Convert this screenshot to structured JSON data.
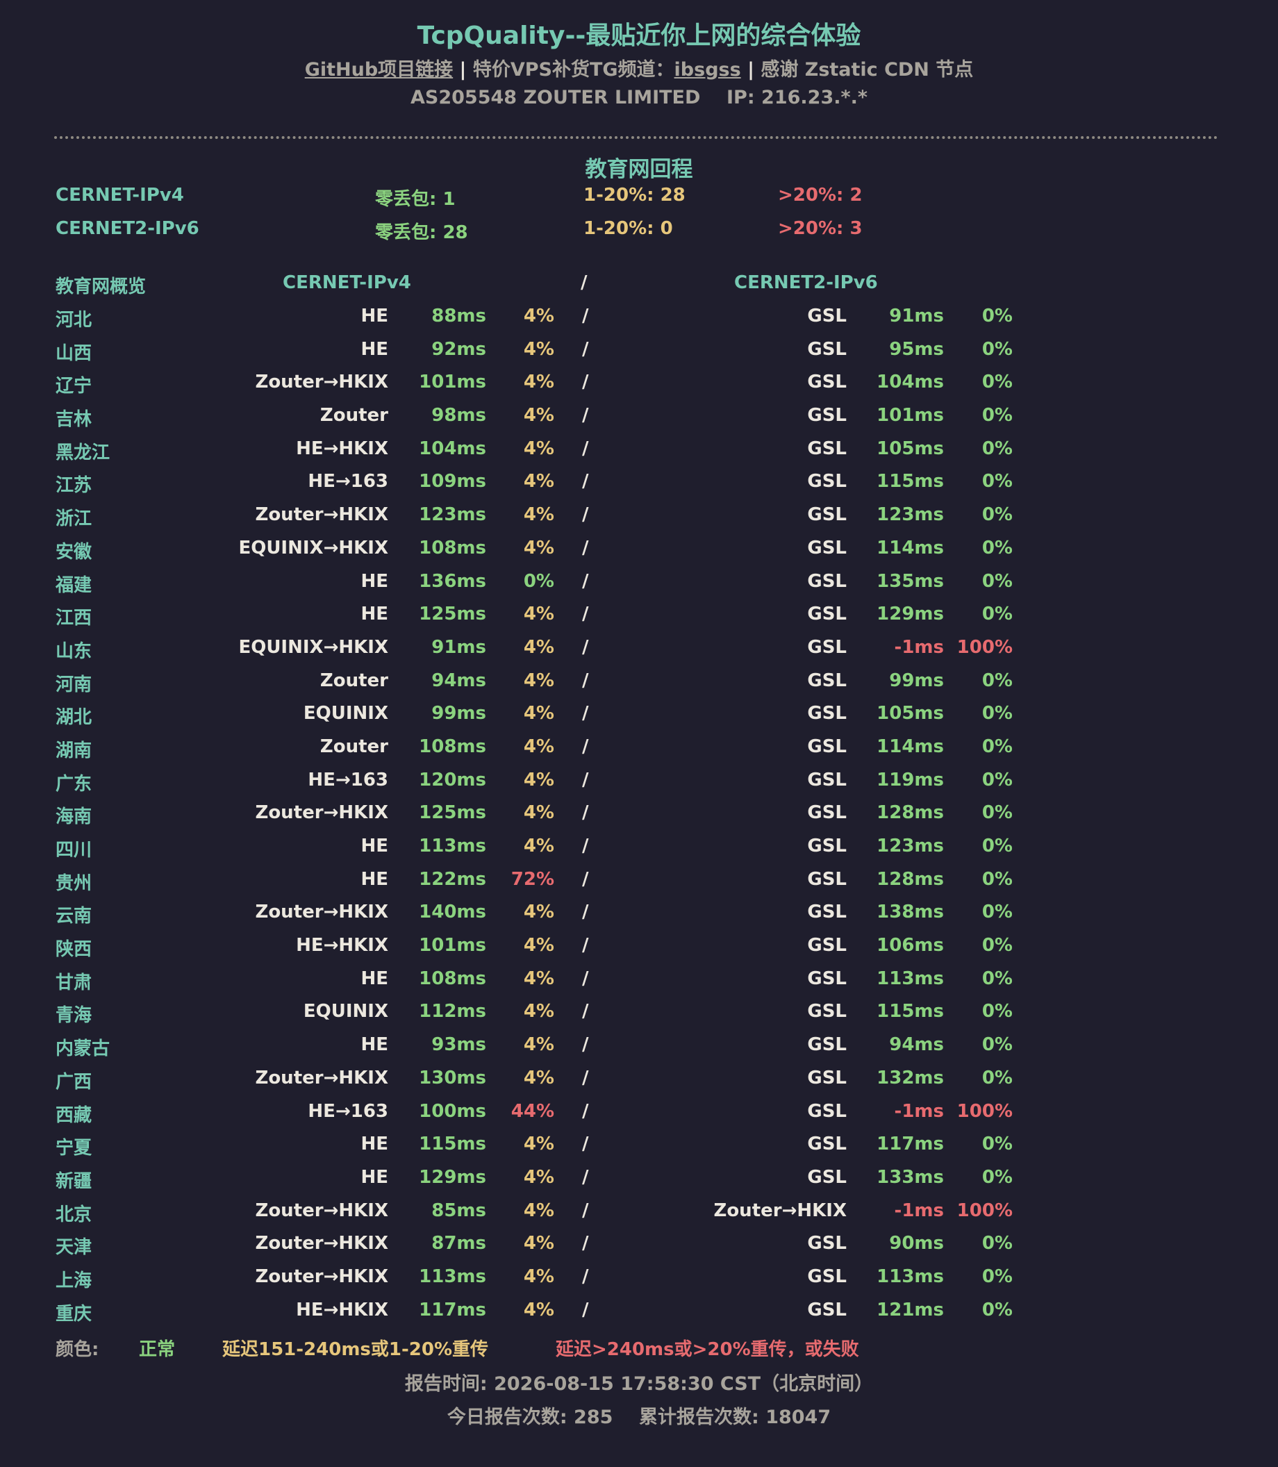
{
  "header": {
    "title": "TcpQuality--最贴近你上网的综合体验",
    "github_link": "GitHub项目链接",
    "sep1": " | ",
    "tg_label": "特价VPS补货TG频道：",
    "tg_link": "ibsgss",
    "sep2": " | ",
    "thanks": "感谢 Zstatic CDN 节点",
    "asinfo": "AS205548 ZOUTER LIMITED    IP: 216.23.*.*"
  },
  "section_title": "教育网回程",
  "summary": [
    {
      "name": "CERNET-IPv4",
      "zero_loss": "零丢包: 1",
      "mid_loss": "1-20%: 28",
      "high_loss": ">20%: 2"
    },
    {
      "name": "CERNET2-IPv6",
      "zero_loss": "零丢包: 28",
      "mid_loss": "1-20%: 0",
      "high_loss": ">20%: 3"
    }
  ],
  "table_header": {
    "overview": "教育网概览",
    "ipv4": "CERNET-IPv4",
    "slash": "/",
    "ipv6": "CERNET2-IPv6"
  },
  "rows": [
    {
      "prov": "河北",
      "r4": "HE",
      "ms4": "88ms",
      "pl4": "4%",
      "r6": "GSL",
      "ms6": "91ms",
      "pl6": "0%"
    },
    {
      "prov": "山西",
      "r4": "HE",
      "ms4": "92ms",
      "pl4": "4%",
      "r6": "GSL",
      "ms6": "95ms",
      "pl6": "0%"
    },
    {
      "prov": "辽宁",
      "r4": "Zouter→HKIX",
      "ms4": "101ms",
      "pl4": "4%",
      "r6": "GSL",
      "ms6": "104ms",
      "pl6": "0%"
    },
    {
      "prov": "吉林",
      "r4": "Zouter",
      "ms4": "98ms",
      "pl4": "4%",
      "r6": "GSL",
      "ms6": "101ms",
      "pl6": "0%"
    },
    {
      "prov": "黑龙江",
      "r4": "HE→HKIX",
      "ms4": "104ms",
      "pl4": "4%",
      "r6": "GSL",
      "ms6": "105ms",
      "pl6": "0%"
    },
    {
      "prov": "江苏",
      "r4": "HE→163",
      "ms4": "109ms",
      "pl4": "4%",
      "r6": "GSL",
      "ms6": "115ms",
      "pl6": "0%"
    },
    {
      "prov": "浙江",
      "r4": "Zouter→HKIX",
      "ms4": "123ms",
      "pl4": "4%",
      "r6": "GSL",
      "ms6": "123ms",
      "pl6": "0%"
    },
    {
      "prov": "安徽",
      "r4": "EQUINIX→HKIX",
      "ms4": "108ms",
      "pl4": "4%",
      "r6": "GSL",
      "ms6": "114ms",
      "pl6": "0%"
    },
    {
      "prov": "福建",
      "r4": "HE",
      "ms4": "136ms",
      "pl4": "0%",
      "r6": "GSL",
      "ms6": "135ms",
      "pl6": "0%"
    },
    {
      "prov": "江西",
      "r4": "HE",
      "ms4": "125ms",
      "pl4": "4%",
      "r6": "GSL",
      "ms6": "129ms",
      "pl6": "0%"
    },
    {
      "prov": "山东",
      "r4": "EQUINIX→HKIX",
      "ms4": "91ms",
      "pl4": "4%",
      "r6": "GSL",
      "ms6": "-1ms",
      "pl6": "100%"
    },
    {
      "prov": "河南",
      "r4": "Zouter",
      "ms4": "94ms",
      "pl4": "4%",
      "r6": "GSL",
      "ms6": "99ms",
      "pl6": "0%"
    },
    {
      "prov": "湖北",
      "r4": "EQUINIX",
      "ms4": "99ms",
      "pl4": "4%",
      "r6": "GSL",
      "ms6": "105ms",
      "pl6": "0%"
    },
    {
      "prov": "湖南",
      "r4": "Zouter",
      "ms4": "108ms",
      "pl4": "4%",
      "r6": "GSL",
      "ms6": "114ms",
      "pl6": "0%"
    },
    {
      "prov": "广东",
      "r4": "HE→163",
      "ms4": "120ms",
      "pl4": "4%",
      "r6": "GSL",
      "ms6": "119ms",
      "pl6": "0%"
    },
    {
      "prov": "海南",
      "r4": "Zouter→HKIX",
      "ms4": "125ms",
      "pl4": "4%",
      "r6": "GSL",
      "ms6": "128ms",
      "pl6": "0%"
    },
    {
      "prov": "四川",
      "r4": "HE",
      "ms4": "113ms",
      "pl4": "4%",
      "r6": "GSL",
      "ms6": "123ms",
      "pl6": "0%"
    },
    {
      "prov": "贵州",
      "r4": "HE",
      "ms4": "122ms",
      "pl4": "72%",
      "r6": "GSL",
      "ms6": "128ms",
      "pl6": "0%"
    },
    {
      "prov": "云南",
      "r4": "Zouter→HKIX",
      "ms4": "140ms",
      "pl4": "4%",
      "r6": "GSL",
      "ms6": "138ms",
      "pl6": "0%"
    },
    {
      "prov": "陕西",
      "r4": "HE→HKIX",
      "ms4": "101ms",
      "pl4": "4%",
      "r6": "GSL",
      "ms6": "106ms",
      "pl6": "0%"
    },
    {
      "prov": "甘肃",
      "r4": "HE",
      "ms4": "108ms",
      "pl4": "4%",
      "r6": "GSL",
      "ms6": "113ms",
      "pl6": "0%"
    },
    {
      "prov": "青海",
      "r4": "EQUINIX",
      "ms4": "112ms",
      "pl4": "4%",
      "r6": "GSL",
      "ms6": "115ms",
      "pl6": "0%"
    },
    {
      "prov": "内蒙古",
      "r4": "HE",
      "ms4": "93ms",
      "pl4": "4%",
      "r6": "GSL",
      "ms6": "94ms",
      "pl6": "0%"
    },
    {
      "prov": "广西",
      "r4": "Zouter→HKIX",
      "ms4": "130ms",
      "pl4": "4%",
      "r6": "GSL",
      "ms6": "132ms",
      "pl6": "0%"
    },
    {
      "prov": "西藏",
      "r4": "HE→163",
      "ms4": "100ms",
      "pl4": "44%",
      "r6": "GSL",
      "ms6": "-1ms",
      "pl6": "100%"
    },
    {
      "prov": "宁夏",
      "r4": "HE",
      "ms4": "115ms",
      "pl4": "4%",
      "r6": "GSL",
      "ms6": "117ms",
      "pl6": "0%"
    },
    {
      "prov": "新疆",
      "r4": "HE",
      "ms4": "129ms",
      "pl4": "4%",
      "r6": "GSL",
      "ms6": "133ms",
      "pl6": "0%"
    },
    {
      "prov": "北京",
      "r4": "Zouter→HKIX",
      "ms4": "85ms",
      "pl4": "4%",
      "r6": "Zouter→HKIX",
      "ms6": "-1ms",
      "pl6": "100%"
    },
    {
      "prov": "天津",
      "r4": "Zouter→HKIX",
      "ms4": "87ms",
      "pl4": "4%",
      "r6": "GSL",
      "ms6": "90ms",
      "pl6": "0%"
    },
    {
      "prov": "上海",
      "r4": "Zouter→HKIX",
      "ms4": "113ms",
      "pl4": "4%",
      "r6": "GSL",
      "ms6": "113ms",
      "pl6": "0%"
    },
    {
      "prov": "重庆",
      "r4": "HE→HKIX",
      "ms4": "117ms",
      "pl4": "4%",
      "r6": "GSL",
      "ms6": "121ms",
      "pl6": "0%"
    }
  ],
  "legend": {
    "label": "颜色:",
    "normal": "正常",
    "warn": "延迟151-240ms或1-20%重传",
    "bad": "延迟>240ms或>20%重传，或失败"
  },
  "footer": {
    "report_time": "报告时间: 2026-08-15 17:58:30 CST（北京时间）",
    "report_count": "今日报告次数: 285    累计报告次数: 18047"
  },
  "colors": {
    "background": "#1f1e2d",
    "normal": "#8bd37f",
    "warn": "#e6c67b",
    "bad": "#e76b6f",
    "accent": "#76c9b2"
  }
}
